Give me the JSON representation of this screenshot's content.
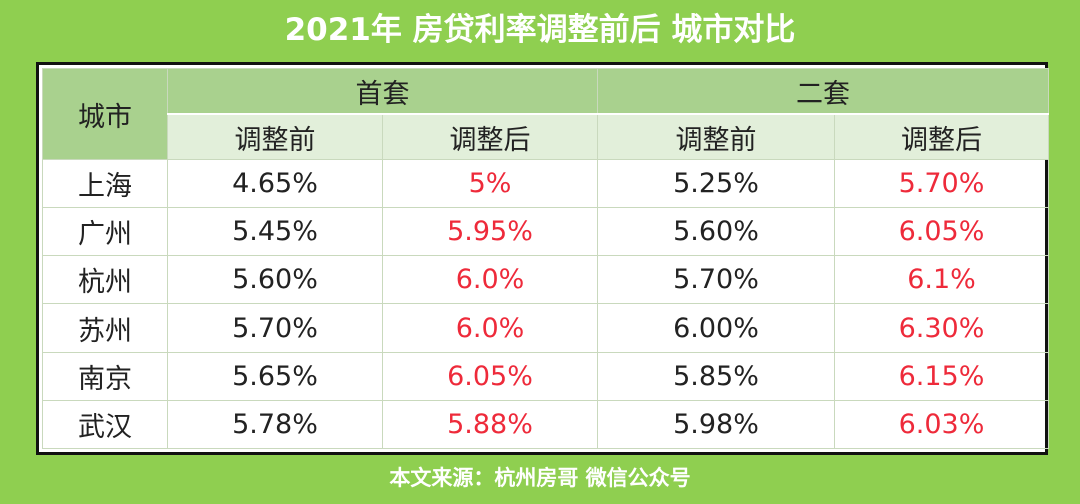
{
  "title": "2021年 房贷利率调整前后 城市对比",
  "table": {
    "corner": "城市",
    "group_headers": [
      "首套",
      "二套"
    ],
    "sub_headers": [
      "调整前",
      "调整后",
      "调整前",
      "调整后"
    ],
    "rows": [
      [
        "上海",
        "4.65%",
        "5%",
        "5.25%",
        "5.70%"
      ],
      [
        "广州",
        "5.45%",
        "5.95%",
        "5.60%",
        "6.05%"
      ],
      [
        "杭州",
        "5.60%",
        "6.0%",
        "5.70%",
        "6.1%"
      ],
      [
        "苏州",
        "5.70%",
        "6.0%",
        "6.00%",
        "6.30%"
      ],
      [
        "南京",
        "5.65%",
        "6.05%",
        "5.85%",
        "6.15%"
      ],
      [
        "武汉",
        "5.78%",
        "5.88%",
        "5.98%",
        "6.03%"
      ]
    ]
  },
  "footer": "本文来源：杭州房哥 微信公众号"
}
